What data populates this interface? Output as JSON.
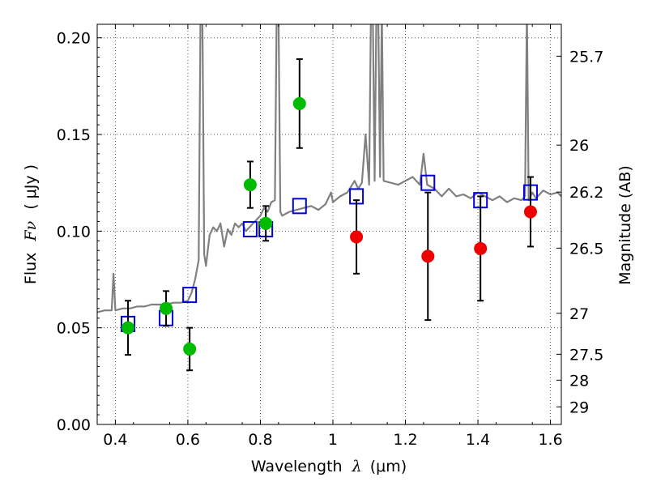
{
  "chart_data": {
    "type": "scatter",
    "xlabel_text": "Wavelength",
    "xlabel_symbol": "λ",
    "xlabel_unit": "(μm)",
    "ylabel_text": "Flux",
    "ylabel_symbol": "Fν",
    "ylabel_unit": "( μJy )",
    "y2label": "Magnitude (AB)",
    "xlim": [
      0.35,
      1.63
    ],
    "ylim": [
      0.0,
      0.207
    ],
    "grid": true,
    "x_ticks": [
      0.4,
      0.6,
      0.8,
      1.0,
      1.2,
      1.4,
      1.6
    ],
    "x_tick_labels": [
      "0.4",
      "0.6",
      "0.8",
      "1",
      "1.2",
      "1.4",
      "1.6"
    ],
    "y_ticks": [
      0.0,
      0.05,
      0.1,
      0.15,
      0.2
    ],
    "y_tick_labels": [
      "0.00",
      "0.05",
      "0.10",
      "0.15",
      "0.20"
    ],
    "y2_ticks": [
      {
        "label": "25.7",
        "flux": 0.1905
      },
      {
        "label": "26",
        "flux": 0.1445
      },
      {
        "label": "26.2",
        "flux": 0.1202
      },
      {
        "label": "26.5",
        "flux": 0.0912
      },
      {
        "label": "27",
        "flux": 0.0575
      },
      {
        "label": "27.5",
        "flux": 0.0363
      },
      {
        "label": "28",
        "flux": 0.0229
      },
      {
        "label": "29",
        "flux": 0.0091
      }
    ],
    "colors": {
      "spectrum": "#808080",
      "model_points": "#0000dd",
      "detections": "#00bb00",
      "upper_bands": "#ee0000",
      "errorbar": "#000000",
      "grid": "#555555"
    },
    "series": [
      {
        "name": "model spectrum",
        "kind": "line",
        "x": [
          0.35,
          0.37,
          0.39,
          0.395,
          0.4,
          0.42,
          0.44,
          0.46,
          0.48,
          0.5,
          0.52,
          0.54,
          0.56,
          0.58,
          0.6,
          0.61,
          0.62,
          0.63,
          0.635,
          0.64,
          0.645,
          0.65,
          0.655,
          0.66,
          0.67,
          0.68,
          0.69,
          0.7,
          0.71,
          0.72,
          0.73,
          0.74,
          0.75,
          0.76,
          0.77,
          0.78,
          0.79,
          0.8,
          0.81,
          0.82,
          0.83,
          0.84,
          0.845,
          0.85,
          0.855,
          0.86,
          0.88,
          0.9,
          0.92,
          0.94,
          0.96,
          0.98,
          0.995,
          1.0,
          1.02,
          1.04,
          1.06,
          1.07,
          1.08,
          1.09,
          1.1,
          1.105,
          1.11,
          1.115,
          1.12,
          1.125,
          1.13,
          1.135,
          1.14,
          1.16,
          1.18,
          1.2,
          1.22,
          1.24,
          1.25,
          1.26,
          1.28,
          1.3,
          1.32,
          1.34,
          1.36,
          1.38,
          1.4,
          1.42,
          1.44,
          1.46,
          1.48,
          1.5,
          1.52,
          1.53,
          1.535,
          1.54,
          1.55,
          1.56,
          1.58,
          1.6,
          1.62,
          1.63
        ],
        "y": [
          0.058,
          0.059,
          0.059,
          0.078,
          0.059,
          0.06,
          0.06,
          0.061,
          0.061,
          0.062,
          0.062,
          0.062,
          0.063,
          0.063,
          0.064,
          0.068,
          0.075,
          0.085,
          0.215,
          0.215,
          0.088,
          0.082,
          0.09,
          0.098,
          0.102,
          0.1,
          0.104,
          0.092,
          0.101,
          0.098,
          0.104,
          0.102,
          0.104,
          0.1,
          0.102,
          0.104,
          0.106,
          0.108,
          0.112,
          0.11,
          0.115,
          0.116,
          0.215,
          0.215,
          0.11,
          0.108,
          0.11,
          0.111,
          0.112,
          0.113,
          0.111,
          0.114,
          0.12,
          0.115,
          0.118,
          0.12,
          0.126,
          0.122,
          0.125,
          0.15,
          0.124,
          0.215,
          0.215,
          0.126,
          0.215,
          0.215,
          0.128,
          0.215,
          0.126,
          0.125,
          0.124,
          0.126,
          0.128,
          0.124,
          0.14,
          0.124,
          0.122,
          0.118,
          0.122,
          0.118,
          0.119,
          0.117,
          0.12,
          0.118,
          0.116,
          0.118,
          0.115,
          0.117,
          0.116,
          0.118,
          0.215,
          0.116,
          0.12,
          0.117,
          0.121,
          0.119,
          0.12,
          0.118
        ]
      },
      {
        "name": "model photometry",
        "kind": "squares",
        "x": [
          0.435,
          0.54,
          0.605,
          0.772,
          0.815,
          0.908,
          1.065,
          1.262,
          1.407,
          1.545
        ],
        "y": [
          0.052,
          0.055,
          0.067,
          0.101,
          0.101,
          0.113,
          0.118,
          0.125,
          0.116,
          0.12
        ]
      },
      {
        "name": "detections",
        "kind": "points",
        "x": [
          0.435,
          0.54,
          0.605,
          0.772,
          0.815,
          0.908
        ],
        "y": [
          0.05,
          0.06,
          0.039,
          0.124,
          0.104,
          0.166
        ],
        "yerr": [
          0.014,
          0.009,
          0.011,
          0.012,
          0.009,
          0.023
        ]
      },
      {
        "name": "red points",
        "kind": "points",
        "x": [
          1.065,
          1.262,
          1.407,
          1.545
        ],
        "y": [
          0.097,
          0.087,
          0.091,
          0.11
        ],
        "yerr": [
          0.019,
          0.033,
          0.027,
          0.018
        ]
      }
    ]
  }
}
